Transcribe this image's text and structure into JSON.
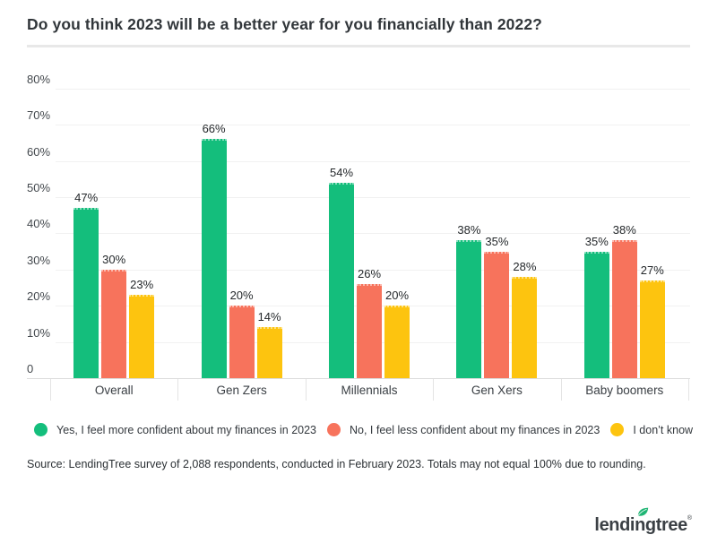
{
  "title": "Do you think 2023 will be a better year for you financially than 2022?",
  "chart_data": {
    "type": "bar",
    "categories": [
      "Overall",
      "Gen Zers",
      "Millennials",
      "Gen Xers",
      "Baby boomers"
    ],
    "series": [
      {
        "name": "Yes, I feel more confident about my finances in 2023",
        "color": "#14be7c",
        "values": [
          47,
          66,
          54,
          38,
          35
        ]
      },
      {
        "name": "No, I feel less confident about my finances in 2023",
        "color": "#f7735c",
        "values": [
          30,
          20,
          26,
          35,
          38
        ]
      },
      {
        "name": "I don’t know",
        "color": "#fdc40f",
        "values": [
          23,
          14,
          20,
          28,
          27
        ]
      }
    ],
    "value_suffix": "%",
    "ylim": [
      0,
      80
    ],
    "y_ticks": [
      {
        "value": 80,
        "label": "80%"
      },
      {
        "value": 70,
        "label": "70%"
      },
      {
        "value": 60,
        "label": "60%"
      },
      {
        "value": 50,
        "label": "50%"
      },
      {
        "value": 40,
        "label": "40%"
      },
      {
        "value": 30,
        "label": "30%"
      },
      {
        "value": 20,
        "label": "20%"
      },
      {
        "value": 10,
        "label": "10%"
      },
      {
        "value": 0,
        "label": "0"
      }
    ],
    "grid": true,
    "legend_position": "bottom"
  },
  "source": "Source: LendingTree survey of 2,088 respondents, conducted in February 2023. Totals may not equal 100% due to rounding.",
  "logo": {
    "text": "lendingtree",
    "trademark": "®",
    "leaf_color": "#1fb574"
  },
  "colors": {
    "title_text": "#31363a",
    "divider": "#e8e8e8",
    "gridline": "#f1f1f1",
    "axis_line": "#dcdcdc",
    "category_tick": "#e4e4e4",
    "background": "#ffffff"
  }
}
